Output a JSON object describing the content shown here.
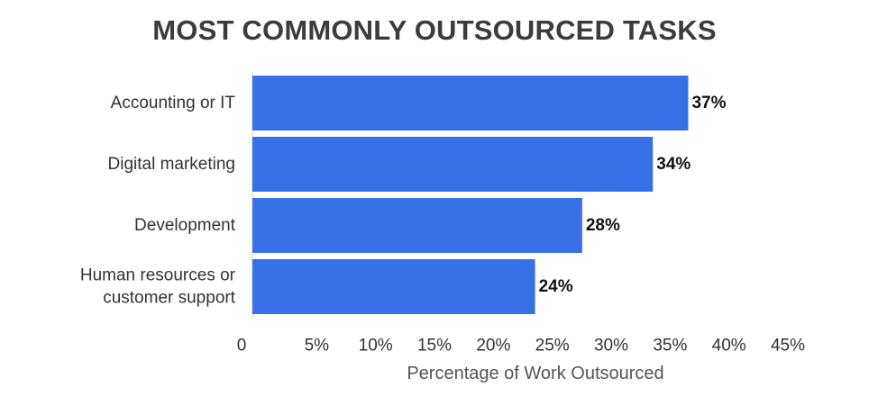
{
  "chart_data": {
    "type": "bar",
    "orientation": "horizontal",
    "title": "MOST COMMONLY OUTSOURCED TASKS",
    "xlabel": "Percentage of Work Outsourced",
    "ylabel": "",
    "categories": [
      [
        "Accounting or IT"
      ],
      [
        "Digital marketing"
      ],
      [
        "Development"
      ],
      [
        "Human resources or",
        "customer support"
      ]
    ],
    "values": [
      37,
      34,
      28,
      24
    ],
    "value_labels": [
      "37%",
      "34%",
      "28%",
      "24%"
    ],
    "xlim": [
      0,
      45
    ],
    "xticks": [
      0,
      5,
      10,
      15,
      20,
      25,
      30,
      35,
      40,
      45
    ],
    "xtick_labels": [
      "0",
      "5%",
      "10%",
      "15%",
      "20%",
      "25%",
      "30%",
      "35%",
      "40%",
      "45%"
    ],
    "grid": false,
    "bar_color": "#3771e8",
    "legend": "none"
  }
}
